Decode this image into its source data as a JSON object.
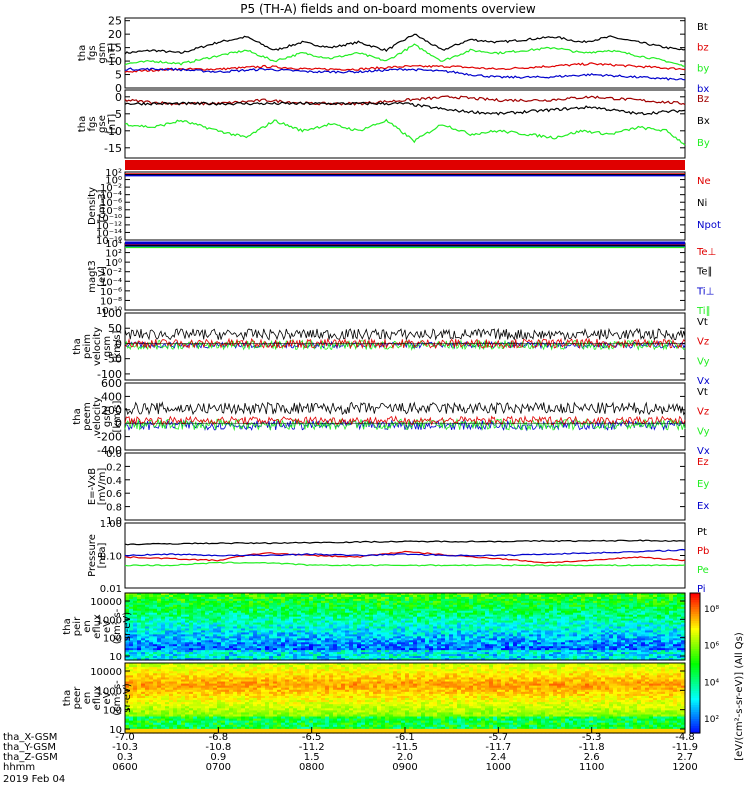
{
  "title": "P5 (TH-A) fields and on-board moments overview",
  "date_label": "2019 Feb 04",
  "colorbar_label": "[eV/(cm²-s-sr-eV)] (All Qs)",
  "colorbar_ticks": [
    "10⁸",
    "10⁶",
    "10⁴",
    "10²"
  ],
  "footer": {
    "row_labels": [
      "tha_X-GSM",
      "tha_Y-GSM",
      "tha_Z-GSM",
      "hhmm"
    ],
    "x_gsm": [
      "-7.0",
      "-6.8",
      "-6.5",
      "-6.1",
      "-5.7",
      "-5.3",
      "-4.8"
    ],
    "y_gsm": [
      "-10.3",
      "-10.8",
      "-11.2",
      "-11.5",
      "-11.7",
      "-11.8",
      "-11.9"
    ],
    "z_gsm": [
      "0.3",
      "0.9",
      "1.5",
      "2.0",
      "2.4",
      "2.6",
      "2.7"
    ],
    "hhmm": [
      "0600",
      "0700",
      "0800",
      "0900",
      "1000",
      "1100",
      "1200"
    ]
  },
  "colors": {
    "black": "#000000",
    "red": "#e00000",
    "green": "#22ee22",
    "blue": "#0000cc",
    "darkred": "#a00000"
  },
  "chart_data": [
    {
      "type": "line",
      "title": "P5 (TH-A) fields and on-board moments overview",
      "ylabel": [
        "tha",
        "fgs",
        "gsm",
        "[nT]"
      ],
      "ylim": [
        0,
        26
      ],
      "yticks": [
        0,
        5,
        10,
        15,
        20,
        25
      ],
      "xlim": [
        6,
        12
      ],
      "series": [
        {
          "name": "Bt",
          "color": "#000000",
          "x": [
            6,
            6.3,
            6.6,
            7,
            7.3,
            7.6,
            7.9,
            8.2,
            8.5,
            8.8,
            9.1,
            9.4,
            9.7,
            10,
            10.3,
            10.6,
            10.9,
            11.2,
            11.5,
            11.8,
            12
          ],
          "values": [
            13,
            14,
            13,
            17,
            19,
            14,
            17,
            15,
            17,
            14,
            20,
            14,
            18,
            17,
            18,
            19,
            17,
            19,
            17,
            15,
            14
          ]
        },
        {
          "name": "bz",
          "color": "#e00000",
          "x": [
            6,
            6.5,
            7,
            7.5,
            8,
            8.5,
            9,
            9.5,
            10,
            10.5,
            11,
            11.5,
            12
          ],
          "values": [
            6,
            7,
            7,
            8,
            7,
            7,
            8,
            8,
            7,
            8,
            9,
            8,
            7
          ]
        },
        {
          "name": "by",
          "color": "#22ee22",
          "x": [
            6,
            6.3,
            6.6,
            7,
            7.3,
            7.6,
            7.9,
            8.2,
            8.5,
            8.8,
            9.1,
            9.4,
            9.7,
            10,
            10.3,
            10.6,
            10.9,
            11.2,
            11.5,
            11.8,
            12
          ],
          "values": [
            9,
            10,
            9,
            12,
            14,
            10,
            13,
            11,
            13,
            10,
            16,
            10,
            14,
            13,
            14,
            15,
            13,
            14,
            12,
            10,
            8
          ]
        },
        {
          "name": "bx",
          "color": "#0000cc",
          "x": [
            6,
            6.5,
            7,
            7.5,
            8,
            8.5,
            9,
            9.5,
            9.7,
            10,
            10.5,
            11,
            11.5,
            12
          ],
          "values": [
            7,
            7,
            6,
            7,
            6,
            6,
            7,
            6,
            5,
            4,
            4,
            5,
            4,
            3
          ]
        }
      ],
      "legend_order": [
        "Bt",
        "bz",
        "by",
        "bx"
      ]
    },
    {
      "type": "line",
      "ylabel": [
        "tha",
        "fgs",
        "gse",
        "[nT]"
      ],
      "ylim": [
        -18,
        2
      ],
      "yticks": [
        -15,
        -10,
        -5,
        0
      ],
      "xlim": [
        6,
        12
      ],
      "series": [
        {
          "name": "Bz",
          "color": "#a00000",
          "x": [
            6,
            6.5,
            7,
            7.5,
            8,
            8.5,
            9,
            9.5,
            10,
            10.5,
            11,
            11.5,
            12
          ],
          "values": [
            -1,
            -2,
            -2,
            -1,
            -2,
            -2,
            -1,
            0,
            -1,
            -1,
            0,
            -1,
            -2
          ]
        },
        {
          "name": "Bx",
          "color": "#000000",
          "x": [
            6,
            6.5,
            7,
            7.5,
            8,
            8.5,
            9,
            9.5,
            10,
            10.5,
            11,
            11.5,
            12
          ],
          "values": [
            -2,
            -2,
            -2,
            -2,
            -2,
            -2,
            -2,
            -4,
            -5,
            -4,
            -3,
            -5,
            -4
          ]
        },
        {
          "name": "By",
          "color": "#22ee22",
          "x": [
            6,
            6.3,
            6.6,
            7,
            7.3,
            7.6,
            7.9,
            8.2,
            8.5,
            8.8,
            9.1,
            9.4,
            9.7,
            10,
            10.3,
            10.6,
            10.9,
            11.2,
            11.5,
            11.8,
            12
          ],
          "values": [
            -8,
            -9,
            -7,
            -10,
            -12,
            -7,
            -10,
            -8,
            -10,
            -7,
            -13,
            -8,
            -11,
            -10,
            -11,
            -12,
            -10,
            -11,
            -9,
            -10,
            -14
          ]
        }
      ],
      "legend_order": [
        "Bz",
        "Bx",
        "By"
      ]
    },
    {
      "type": "line",
      "log_y": true,
      "ylabel": [
        "Density",
        "[cm-3]"
      ],
      "ylim": [
        -16,
        2
      ],
      "yticks": [
        "10²",
        "10⁰",
        "10⁻²",
        "10⁻⁴",
        "10⁻⁶",
        "10⁻⁸",
        "10⁻¹⁰",
        "10⁻¹²",
        "10⁻¹⁴",
        "10⁻¹⁶"
      ],
      "series": [
        {
          "name": "Ne",
          "color": "#e00000",
          "level": 0
        },
        {
          "name": "Ni",
          "color": "#000000",
          "level": 0
        },
        {
          "name": "Npot",
          "color": "#0000cc",
          "level": 0
        }
      ],
      "legend_order": [
        "Ne",
        "Ni",
        "Npot"
      ]
    },
    {
      "type": "line",
      "log_y": true,
      "ylabel": [
        "magt3",
        "[eV]"
      ],
      "ylim": [
        -10,
        4
      ],
      "yticks": [
        "10⁴",
        "10²",
        "10⁰",
        "10⁻²",
        "10⁻⁴",
        "10⁻⁶",
        "10⁻⁸",
        "10⁻¹⁰"
      ],
      "series": [
        {
          "name": "Te⊥",
          "color": "#e00000",
          "level": 3
        },
        {
          "name": "Te∥",
          "color": "#000000",
          "level": 3
        },
        {
          "name": "Ti⊥",
          "color": "#0000cc",
          "level": 3
        },
        {
          "name": "Ti∥",
          "color": "#22ee22",
          "level": 3
        }
      ],
      "legend_order": [
        "Te⊥",
        "Te∥",
        "Ti⊥",
        "Ti∥"
      ]
    },
    {
      "type": "line",
      "ylabel": [
        "tha",
        "peim",
        "velocity",
        "gsm",
        "[km/s]"
      ],
      "ylim": [
        -120,
        100
      ],
      "yticks": [
        -100,
        -50,
        0,
        50,
        100
      ],
      "series": [
        {
          "name": "Vt",
          "color": "#000000",
          "center": 30,
          "spread": 18
        },
        {
          "name": "Vz",
          "color": "#e00000",
          "center": 0,
          "spread": 15
        },
        {
          "name": "Vy",
          "color": "#22ee22",
          "center": -5,
          "spread": 15
        },
        {
          "name": "Vx",
          "color": "#0000cc",
          "center": -5,
          "spread": 10
        }
      ],
      "legend_order": [
        "Vt",
        "Vz",
        "Vy",
        "Vx"
      ]
    },
    {
      "type": "line",
      "ylabel": [
        "tha",
        "peem",
        "velocity",
        "gsm",
        "[km/s]"
      ],
      "ylim": [
        -400,
        600
      ],
      "yticks": [
        -400,
        -200,
        0,
        200,
        400,
        600
      ],
      "series": [
        {
          "name": "Vt",
          "color": "#000000",
          "center": 220,
          "spread": 90
        },
        {
          "name": "Vz",
          "color": "#e00000",
          "center": 40,
          "spread": 60
        },
        {
          "name": "Vy",
          "color": "#22ee22",
          "center": -20,
          "spread": 80
        },
        {
          "name": "Vx",
          "color": "#0000cc",
          "center": -30,
          "spread": 70
        }
      ],
      "legend_order": [
        "Vt",
        "Vz",
        "Vy",
        "Vx"
      ]
    },
    {
      "type": "line",
      "ylabel": [
        "E=-VxB",
        "[mV/m]"
      ],
      "ylim": [
        0,
        1
      ],
      "yticks": [
        "0.0",
        "0.2",
        "0.4",
        "0.6",
        "0.8",
        "1.0"
      ],
      "series": [
        {
          "name": "Ez",
          "color": "#e00000"
        },
        {
          "name": "Ey",
          "color": "#22ee22"
        },
        {
          "name": "Ex",
          "color": "#0000cc"
        }
      ],
      "legend_order": [
        "Ez",
        "Ey",
        "Ex"
      ]
    },
    {
      "type": "line",
      "log_y": true,
      "ylabel": [
        "Pressure",
        "[nPa]"
      ],
      "ylim": [
        0.01,
        1
      ],
      "yticks": [
        "1.00",
        "0.10",
        "0.01"
      ],
      "xlim": [
        6,
        12
      ],
      "series": [
        {
          "name": "Pt",
          "color": "#000000",
          "x": [
            6,
            6.5,
            7,
            7.5,
            8,
            8.5,
            9,
            9.5,
            10,
            10.5,
            11,
            11.5,
            12
          ],
          "values": [
            0.22,
            0.23,
            0.24,
            0.24,
            0.25,
            0.26,
            0.27,
            0.27,
            0.27,
            0.28,
            0.28,
            0.29,
            0.28
          ]
        },
        {
          "name": "Pb",
          "color": "#e00000",
          "x": [
            6,
            6.5,
            7,
            7.5,
            8,
            8.5,
            9,
            9.5,
            10,
            10.5,
            11,
            11.5,
            12
          ],
          "values": [
            0.09,
            0.08,
            0.07,
            0.12,
            0.1,
            0.09,
            0.13,
            0.1,
            0.08,
            0.06,
            0.07,
            0.09,
            0.07
          ]
        },
        {
          "name": "Pe",
          "color": "#22ee22",
          "x": [
            6,
            6.5,
            7,
            7.5,
            8,
            8.5,
            9,
            9.5,
            10,
            10.5,
            11,
            11.5,
            12
          ],
          "values": [
            0.05,
            0.05,
            0.06,
            0.06,
            0.05,
            0.05,
            0.05,
            0.05,
            0.05,
            0.05,
            0.05,
            0.05,
            0.05
          ]
        },
        {
          "name": "Pi",
          "color": "#0000cc",
          "x": [
            6,
            6.5,
            7,
            7.5,
            8,
            8.5,
            9,
            9.5,
            10,
            10.5,
            11,
            11.5,
            12
          ],
          "values": [
            0.1,
            0.11,
            0.1,
            0.1,
            0.11,
            0.1,
            0.11,
            0.1,
            0.1,
            0.11,
            0.12,
            0.13,
            0.15
          ]
        }
      ],
      "legend_order": [
        "Pt",
        "Pb",
        "Pe",
        "Pi"
      ]
    },
    {
      "type": "heatmap",
      "ylabel": [
        "tha",
        "peir",
        "en",
        "eflux",
        "eV",
        "(cm²-s-",
        "sr-eV)"
      ],
      "yticks": [
        "10000",
        "1000",
        "100",
        "10"
      ],
      "ylim_log": [
        0.9,
        4.3
      ]
    },
    {
      "type": "heatmap",
      "ylabel": [
        "tha",
        "peer",
        "en",
        "eflux",
        "eV",
        "(cm²-s-",
        "sr-eV)"
      ],
      "yticks": [
        "10000",
        "1000",
        "100",
        "10"
      ],
      "ylim_log": [
        0.9,
        4.3
      ]
    }
  ]
}
